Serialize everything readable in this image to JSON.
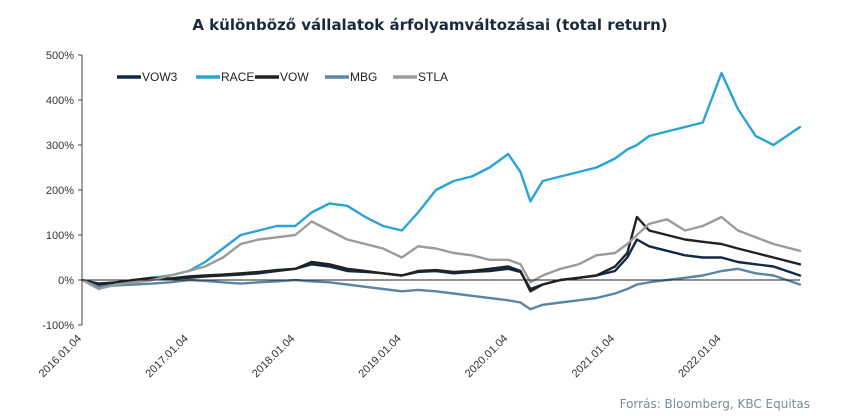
{
  "chart_data": {
    "type": "line",
    "title": "A különböző vállalatok árfolyamváltozásai (total return)",
    "source": "Forrás: Bloomberg, KBC Equitas",
    "ylim": [
      -100,
      500
    ],
    "yticks": [
      "-100%",
      "0%",
      "100%",
      "200%",
      "300%",
      "400%",
      "500%"
    ],
    "ytick_values": [
      -100,
      0,
      100,
      200,
      300,
      400,
      500
    ],
    "xlim": [
      "2016-01-04",
      "2022-09-30"
    ],
    "xticks": [
      "2016.01.04",
      "2017.01.04",
      "2018.01.04",
      "2019.01.04",
      "2020.01.04",
      "2021.01.04",
      "2022.01.04"
    ],
    "xtick_dates": [
      "2016-01-04",
      "2017-01-04",
      "2018-01-04",
      "2019-01-04",
      "2020-01-04",
      "2021-01-04",
      "2022-01-04"
    ],
    "legend_position": "top-left",
    "grid": false,
    "x": [
      "2016-01-04",
      "2016-03-01",
      "2016-05-01",
      "2016-07-01",
      "2016-09-01",
      "2016-11-01",
      "2017-01-04",
      "2017-03-01",
      "2017-05-01",
      "2017-07-01",
      "2017-09-01",
      "2017-11-01",
      "2018-01-04",
      "2018-03-01",
      "2018-05-01",
      "2018-07-01",
      "2018-09-01",
      "2018-11-01",
      "2019-01-04",
      "2019-03-01",
      "2019-05-01",
      "2019-07-01",
      "2019-09-01",
      "2019-11-01",
      "2020-01-04",
      "2020-02-15",
      "2020-03-20",
      "2020-05-01",
      "2020-07-01",
      "2020-09-01",
      "2020-11-01",
      "2021-01-04",
      "2021-02-15",
      "2021-03-20",
      "2021-05-01",
      "2021-07-01",
      "2021-09-01",
      "2021-11-01",
      "2022-01-04",
      "2022-03-01",
      "2022-05-01",
      "2022-07-01",
      "2022-09-30"
    ],
    "series": [
      {
        "name": "VOW3",
        "color": "#0e2a47",
        "values": [
          0,
          -8,
          -5,
          0,
          5,
          3,
          5,
          8,
          10,
          12,
          15,
          20,
          25,
          35,
          30,
          20,
          18,
          15,
          10,
          18,
          20,
          15,
          18,
          20,
          25,
          18,
          -20,
          -10,
          0,
          5,
          10,
          20,
          50,
          90,
          75,
          65,
          55,
          50,
          50,
          40,
          35,
          30,
          10
        ]
      },
      {
        "name": "RACE",
        "color": "#2aa3d6",
        "values": [
          0,
          -15,
          -5,
          0,
          5,
          10,
          20,
          40,
          70,
          100,
          110,
          120,
          120,
          150,
          170,
          165,
          140,
          120,
          110,
          150,
          200,
          220,
          230,
          250,
          280,
          240,
          175,
          220,
          230,
          240,
          250,
          270,
          290,
          300,
          320,
          330,
          340,
          350,
          460,
          380,
          320,
          300,
          340
        ]
      },
      {
        "name": "VOW",
        "color": "#222222",
        "values": [
          0,
          -10,
          -5,
          0,
          5,
          3,
          8,
          10,
          12,
          15,
          18,
          22,
          25,
          40,
          35,
          25,
          20,
          15,
          10,
          20,
          22,
          18,
          20,
          25,
          30,
          20,
          -25,
          -10,
          0,
          5,
          10,
          30,
          60,
          140,
          110,
          100,
          90,
          85,
          80,
          70,
          60,
          50,
          35
        ]
      },
      {
        "name": "MBG",
        "color": "#5a86a4",
        "values": [
          0,
          -15,
          -12,
          -10,
          -8,
          -5,
          0,
          -2,
          -5,
          -8,
          -5,
          -3,
          0,
          -3,
          -5,
          -10,
          -15,
          -20,
          -25,
          -22,
          -25,
          -30,
          -35,
          -40,
          -45,
          -50,
          -65,
          -55,
          -50,
          -45,
          -40,
          -30,
          -20,
          -10,
          -5,
          0,
          5,
          10,
          20,
          25,
          15,
          10,
          -10
        ]
      },
      {
        "name": "STLA",
        "color": "#9b9b9b",
        "values": [
          0,
          -20,
          -10,
          -5,
          0,
          10,
          20,
          30,
          50,
          80,
          90,
          95,
          100,
          130,
          110,
          90,
          80,
          70,
          50,
          75,
          70,
          60,
          55,
          45,
          45,
          35,
          -5,
          10,
          25,
          35,
          55,
          60,
          80,
          100,
          125,
          135,
          110,
          120,
          140,
          110,
          95,
          80,
          65
        ]
      }
    ]
  }
}
